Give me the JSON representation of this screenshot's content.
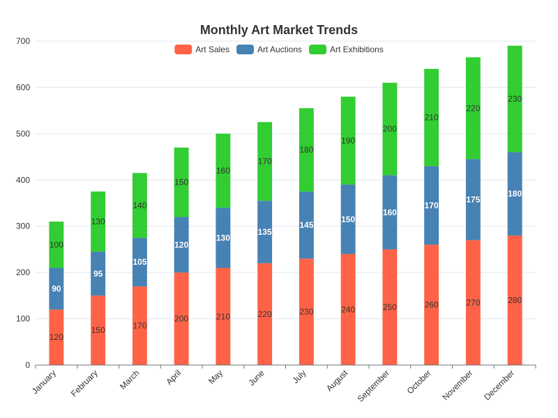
{
  "chart_data": {
    "type": "bar",
    "stacked": true,
    "title": "Monthly Art Market Trends",
    "categories": [
      "January",
      "February",
      "March",
      "April",
      "May",
      "June",
      "July",
      "August",
      "September",
      "October",
      "November",
      "December"
    ],
    "series": [
      {
        "name": "Art Sales",
        "color": "#ff6347",
        "values": [
          120,
          150,
          170,
          200,
          210,
          220,
          230,
          240,
          250,
          260,
          270,
          280
        ]
      },
      {
        "name": "Art Auctions",
        "color": "#4682b4",
        "values": [
          90,
          95,
          105,
          120,
          130,
          135,
          145,
          150,
          160,
          170,
          175,
          180
        ]
      },
      {
        "name": "Art Exhibitions",
        "color": "#32cd32",
        "values": [
          100,
          130,
          140,
          150,
          160,
          170,
          180,
          190,
          200,
          210,
          220,
          230
        ]
      }
    ],
    "ylim": [
      0,
      700
    ],
    "yticks": [
      0,
      100,
      200,
      300,
      400,
      500,
      600,
      700
    ],
    "grid": true,
    "legend_position": "top-center"
  }
}
